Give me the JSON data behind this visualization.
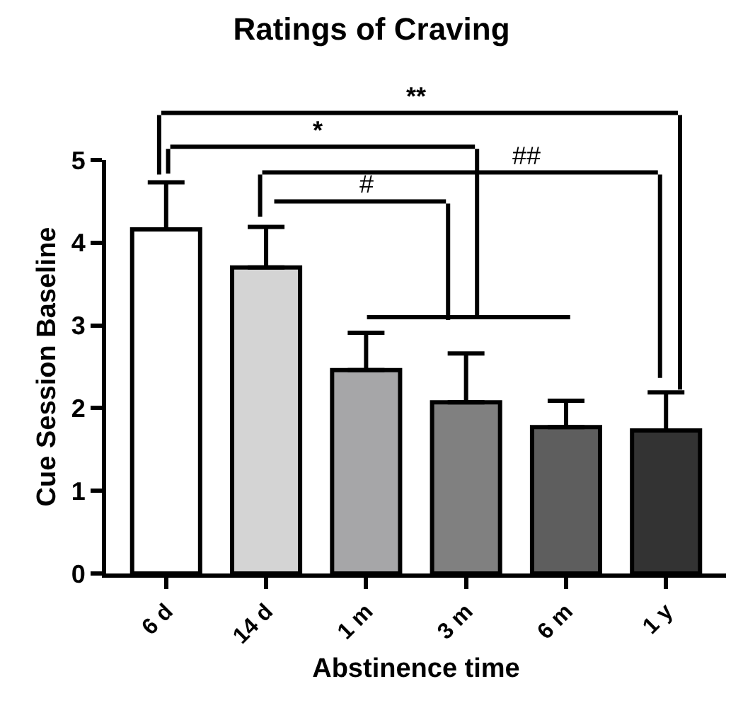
{
  "chart_data": {
    "type": "bar",
    "title": "Ratings of Craving",
    "xlabel": "Abstinence time",
    "ylabel": "Cue Session Baseline",
    "categories": [
      "6 d",
      "14 d",
      "1 m",
      "3 m",
      "6 m",
      "1 y"
    ],
    "values": [
      4.16,
      3.7,
      2.46,
      2.07,
      1.77,
      1.73
    ],
    "errors": [
      [
        4.16,
        4.73
      ],
      [
        3.7,
        4.19
      ],
      [
        2.46,
        2.91
      ],
      [
        2.07,
        2.66
      ],
      [
        1.77,
        2.09
      ],
      [
        1.73,
        2.19
      ]
    ],
    "colors": [
      "#ffffff",
      "#d4d4d4",
      "#a6a6a8",
      "#808080",
      "#5e5e5e",
      "#333333"
    ],
    "ylim": [
      0,
      5
    ],
    "yticks": [
      0,
      1,
      2,
      3,
      4,
      5
    ],
    "annotations": [
      "**",
      "*",
      "##",
      "#"
    ]
  }
}
